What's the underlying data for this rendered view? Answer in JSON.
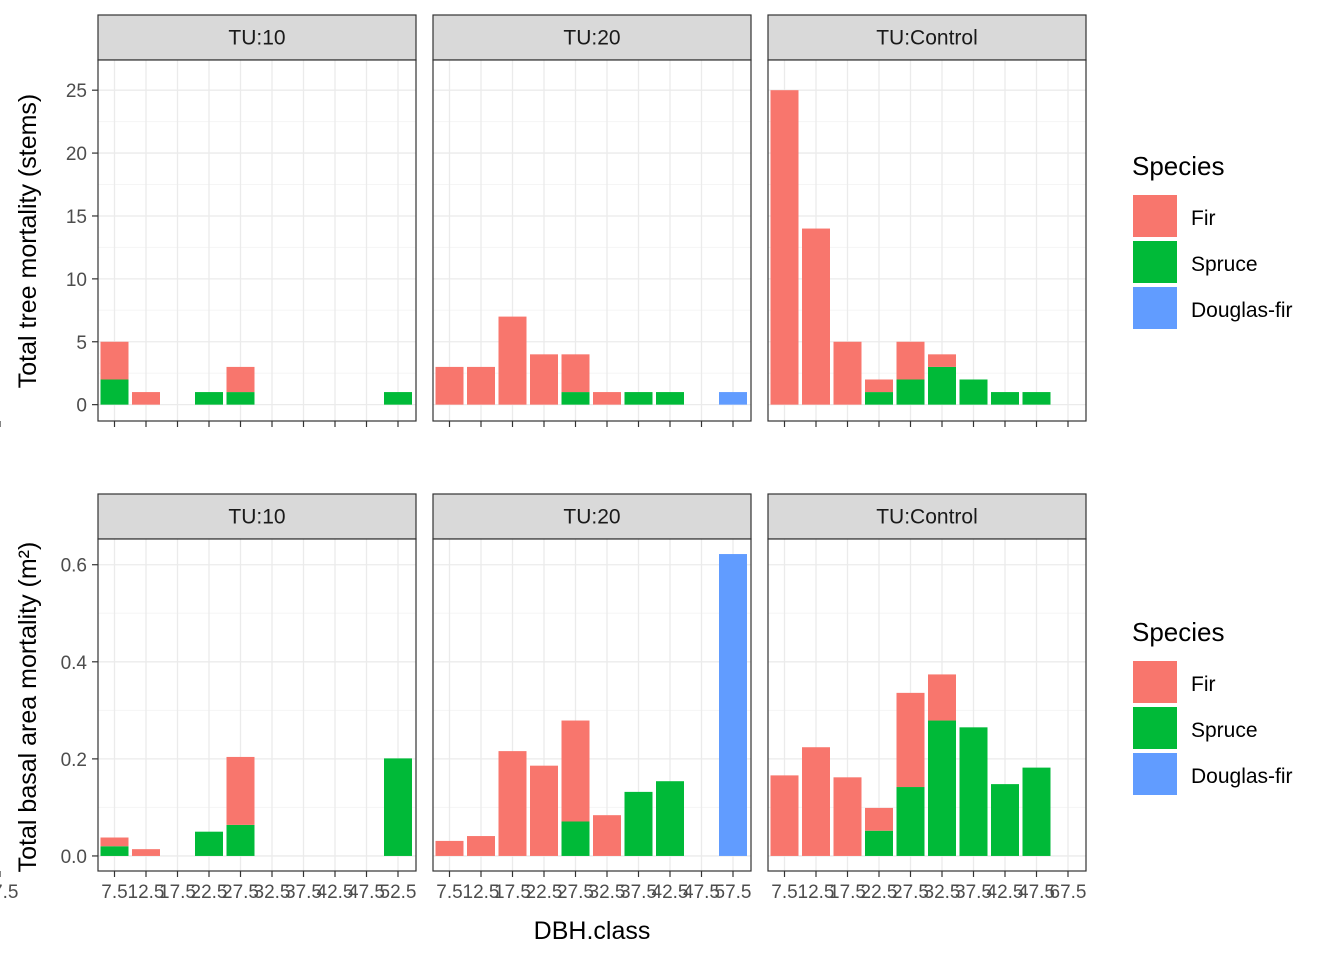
{
  "colors": {
    "Fir": "#F8766D",
    "Spruce": "#00BA38",
    "Douglas-fir": "#619CFF",
    "strip_fill": "#D9D9D9",
    "panel_border": "#333333",
    "grid_major": "#EBEBEB",
    "grid_minor": "#F5F5F5"
  },
  "figure": {
    "xlabel": "DBH.class",
    "ylabel_top": "Total tree mortality (stems)",
    "ylabel_bottom": "Total basal area mortality (m²)",
    "legend_top": {
      "title": "Species",
      "items": [
        "Fir",
        "Spruce",
        "Douglas-fir"
      ]
    },
    "legend_bottom": {
      "title": "Species",
      "items": [
        "Fir",
        "Spruce",
        "Douglas-fir"
      ]
    }
  },
  "chart_data": [
    {
      "type": "bar",
      "stacked": true,
      "metric": "stems",
      "ylabel": "Total tree mortality (stems)",
      "ylim": [
        -1.3,
        27.4
      ],
      "yticks": [
        0,
        5,
        10,
        15,
        20,
        25
      ],
      "xlabel": "DBH.class",
      "x_ticks": [
        "7.5",
        "12.5",
        "17.5",
        "22.5",
        "27.5",
        "32.5",
        "37.5",
        "42.5",
        "47.5",
        "52.5",
        "57.5",
        "67.5"
      ],
      "facets": [
        {
          "strip": "TU:10",
          "x_ticks": [
            "7.5",
            "12.5",
            "17.5",
            "22.5",
            "27.5",
            "32.5",
            "37.5",
            "42.5",
            "47.5",
            "52.5",
            "57.5"
          ],
          "series": [
            {
              "name": "Fir",
              "points": [
                {
                  "x": "7.5",
                  "y": 3
                },
                {
                  "x": "12.5",
                  "y": 1
                },
                {
                  "x": "27.5",
                  "y": 2
                }
              ]
            },
            {
              "name": "Spruce",
              "points": [
                {
                  "x": "7.5",
                  "y": 2
                },
                {
                  "x": "22.5",
                  "y": 1
                },
                {
                  "x": "27.5",
                  "y": 1
                },
                {
                  "x": "52.5",
                  "y": 1
                }
              ]
            },
            {
              "name": "Douglas-fir",
              "points": []
            }
          ]
        },
        {
          "strip": "TU:20",
          "x_ticks": [
            "7.5",
            "12.5",
            "17.5",
            "22.5",
            "27.5",
            "32.5",
            "37.5",
            "42.5",
            "47.5",
            "57.5"
          ],
          "series": [
            {
              "name": "Fir",
              "points": [
                {
                  "x": "7.5",
                  "y": 3
                },
                {
                  "x": "12.5",
                  "y": 3
                },
                {
                  "x": "17.5",
                  "y": 7
                },
                {
                  "x": "22.5",
                  "y": 4
                },
                {
                  "x": "27.5",
                  "y": 3
                },
                {
                  "x": "32.5",
                  "y": 1
                }
              ]
            },
            {
              "name": "Spruce",
              "points": [
                {
                  "x": "27.5",
                  "y": 1
                },
                {
                  "x": "37.5",
                  "y": 1
                },
                {
                  "x": "42.5",
                  "y": 1
                }
              ]
            },
            {
              "name": "Douglas-fir",
              "points": [
                {
                  "x": "57.5",
                  "y": 1
                }
              ]
            }
          ]
        },
        {
          "strip": "TU:Control",
          "x_ticks": [
            "7.5",
            "12.5",
            "17.5",
            "22.5",
            "27.5",
            "32.5",
            "37.5",
            "42.5",
            "47.5",
            "67.5"
          ],
          "series": [
            {
              "name": "Fir",
              "points": [
                {
                  "x": "7.5",
                  "y": 25
                },
                {
                  "x": "12.5",
                  "y": 14
                },
                {
                  "x": "17.5",
                  "y": 5
                },
                {
                  "x": "22.5",
                  "y": 1
                },
                {
                  "x": "27.5",
                  "y": 3
                },
                {
                  "x": "32.5",
                  "y": 1
                }
              ]
            },
            {
              "name": "Spruce",
              "points": [
                {
                  "x": "22.5",
                  "y": 1
                },
                {
                  "x": "27.5",
                  "y": 2
                },
                {
                  "x": "32.5",
                  "y": 3
                },
                {
                  "x": "37.5",
                  "y": 2
                },
                {
                  "x": "42.5",
                  "y": 1
                },
                {
                  "x": "47.5",
                  "y": 1
                }
              ]
            },
            {
              "name": "Douglas-fir",
              "points": []
            }
          ]
        }
      ]
    },
    {
      "type": "bar",
      "stacked": true,
      "metric": "basal_area",
      "ylabel": "Total basal area mortality (m²)",
      "ylim": [
        -0.031,
        0.653
      ],
      "yticks": [
        0.0,
        0.2,
        0.4,
        0.6
      ],
      "ytick_labels": [
        "0.0",
        "0.2",
        "0.4",
        "0.6"
      ],
      "xlabel": "DBH.class",
      "x_ticks": [
        "7.5",
        "12.5",
        "17.5",
        "22.5",
        "27.5",
        "32.5",
        "37.5",
        "42.5",
        "47.5",
        "52.5",
        "57.5",
        "67.5"
      ],
      "facets": [
        {
          "strip": "TU:10",
          "x_ticks": [
            "7.5",
            "12.5",
            "17.5",
            "22.5",
            "27.5",
            "32.5",
            "37.5",
            "42.5",
            "47.5",
            "52.5",
            "57.5"
          ],
          "series": [
            {
              "name": "Fir",
              "points": [
                {
                  "x": "7.5",
                  "y": 0.018
                },
                {
                  "x": "12.5",
                  "y": 0.014
                },
                {
                  "x": "27.5",
                  "y": 0.14
                }
              ]
            },
            {
              "name": "Spruce",
              "points": [
                {
                  "x": "7.5",
                  "y": 0.02
                },
                {
                  "x": "22.5",
                  "y": 0.05
                },
                {
                  "x": "27.5",
                  "y": 0.064
                },
                {
                  "x": "52.5",
                  "y": 0.201
                }
              ]
            },
            {
              "name": "Douglas-fir",
              "points": []
            }
          ]
        },
        {
          "strip": "TU:20",
          "x_ticks": [
            "7.5",
            "12.5",
            "17.5",
            "22.5",
            "27.5",
            "32.5",
            "37.5",
            "42.5",
            "47.5",
            "57.5"
          ],
          "series": [
            {
              "name": "Fir",
              "points": [
                {
                  "x": "7.5",
                  "y": 0.031
                },
                {
                  "x": "12.5",
                  "y": 0.041
                },
                {
                  "x": "17.5",
                  "y": 0.216
                },
                {
                  "x": "22.5",
                  "y": 0.186
                },
                {
                  "x": "27.5",
                  "y": 0.208
                },
                {
                  "x": "32.5",
                  "y": 0.084
                }
              ]
            },
            {
              "name": "Spruce",
              "points": [
                {
                  "x": "27.5",
                  "y": 0.071
                },
                {
                  "x": "37.5",
                  "y": 0.132
                },
                {
                  "x": "42.5",
                  "y": 0.154
                }
              ]
            },
            {
              "name": "Douglas-fir",
              "points": [
                {
                  "x": "57.5",
                  "y": 0.622
                }
              ]
            }
          ]
        },
        {
          "strip": "TU:Control",
          "x_ticks": [
            "7.5",
            "12.5",
            "17.5",
            "22.5",
            "27.5",
            "32.5",
            "37.5",
            "42.5",
            "47.5",
            "67.5"
          ],
          "series": [
            {
              "name": "Fir",
              "points": [
                {
                  "x": "7.5",
                  "y": 0.166
                },
                {
                  "x": "12.5",
                  "y": 0.224
                },
                {
                  "x": "17.5",
                  "y": 0.162
                },
                {
                  "x": "22.5",
                  "y": 0.047
                },
                {
                  "x": "27.5",
                  "y": 0.194
                },
                {
                  "x": "32.5",
                  "y": 0.095
                }
              ]
            },
            {
              "name": "Spruce",
              "points": [
                {
                  "x": "22.5",
                  "y": 0.052
                },
                {
                  "x": "27.5",
                  "y": 0.142
                },
                {
                  "x": "32.5",
                  "y": 0.279
                },
                {
                  "x": "37.5",
                  "y": 0.265
                },
                {
                  "x": "42.5",
                  "y": 0.148
                },
                {
                  "x": "47.5",
                  "y": 0.182
                }
              ]
            },
            {
              "name": "Douglas-fir",
              "points": []
            }
          ]
        }
      ]
    }
  ]
}
